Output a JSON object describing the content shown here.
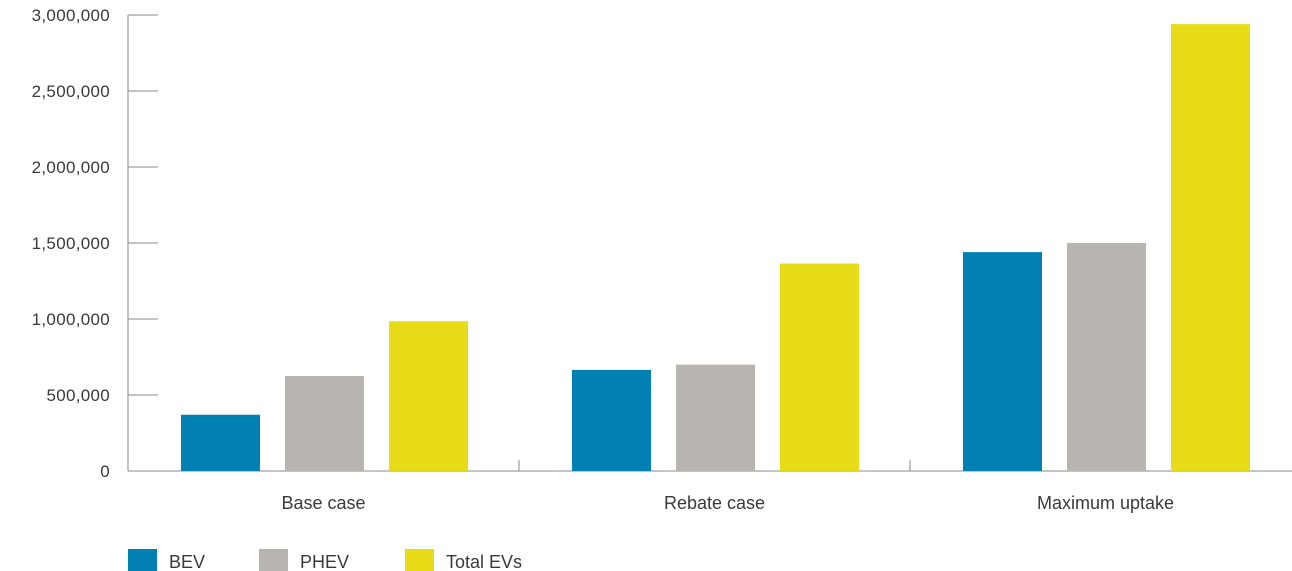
{
  "chart_data": {
    "type": "bar",
    "title": "",
    "xlabel": "",
    "ylabel": "",
    "categories": [
      "Base case",
      "Rebate case",
      "Maximum uptake"
    ],
    "series": [
      {
        "name": "BEV",
        "color": "#0080b3",
        "values": [
          370000,
          665000,
          1440000
        ]
      },
      {
        "name": "PHEV",
        "color": "#b8b4b0",
        "values": [
          625000,
          700000,
          1500000
        ]
      },
      {
        "name": "Total EVs",
        "color": "#e8dc18",
        "values": [
          985000,
          1365000,
          2940000
        ]
      }
    ],
    "ylim": [
      0,
      3000000
    ],
    "yticks": [
      {
        "value": 0,
        "label": "0"
      },
      {
        "value": 500000,
        "label": "500,000"
      },
      {
        "value": 1000000,
        "label": "1,000,000"
      },
      {
        "value": 1500000,
        "label": "1,500,000"
      },
      {
        "value": 2000000,
        "label": "2,000,000"
      },
      {
        "value": 2500000,
        "label": "2,500,000"
      },
      {
        "value": 3000000,
        "label": "3,000,000"
      }
    ],
    "grid": false,
    "legend_position": "bottom-left"
  }
}
